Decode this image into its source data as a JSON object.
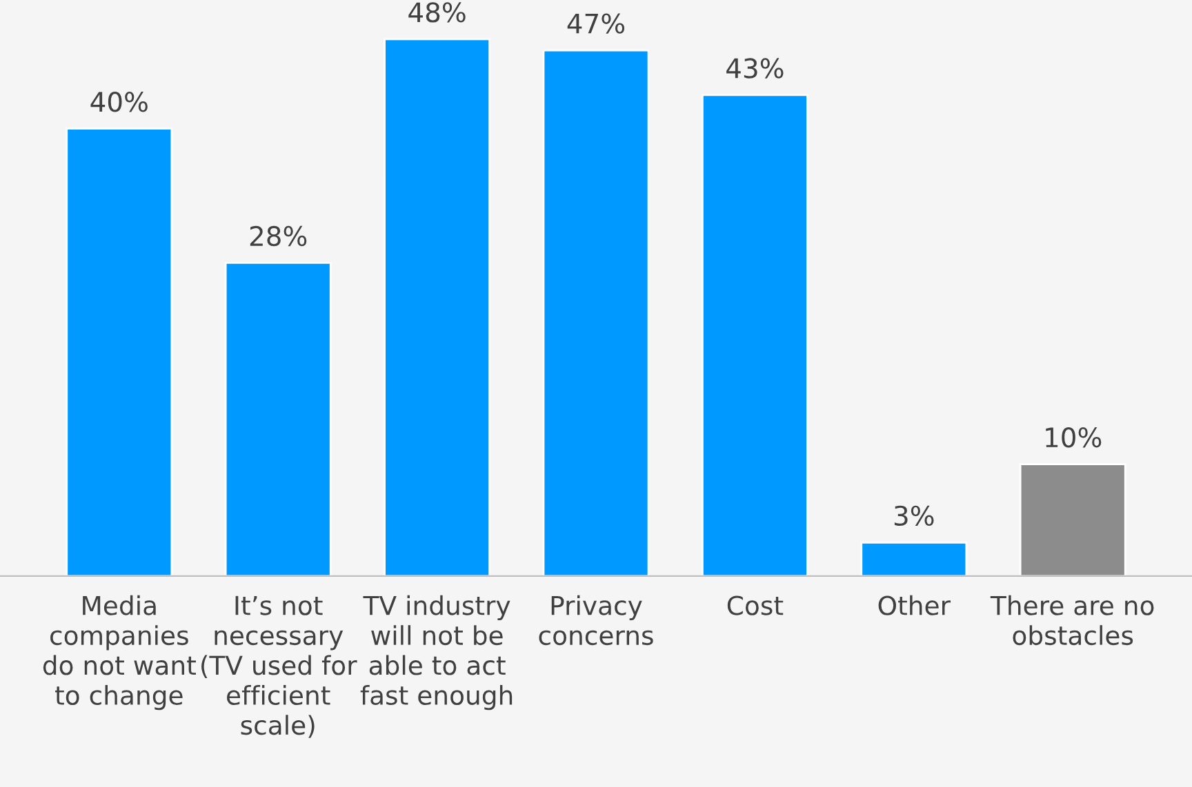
{
  "chart_data": {
    "type": "bar",
    "categories": [
      "Media\ncompanies\ndo not want\nto change",
      "It’s not\nnecessary\n(TV used for\nefficient\nscale)",
      "TV industry\nwill not be\nable to act\nfast enough",
      "Privacy\nconcerns",
      "Cost",
      "Other",
      "There are no\nobstacles"
    ],
    "values": [
      40,
      28,
      48,
      47,
      43,
      3,
      10
    ],
    "colors": [
      "#0099ff",
      "#0099ff",
      "#0099ff",
      "#0099ff",
      "#0099ff",
      "#0099ff",
      "#8c8c8c"
    ],
    "value_labels": [
      "40%",
      "28%",
      "48%",
      "47%",
      "43%",
      "3%",
      "10%"
    ],
    "grid": false,
    "legend": false
  }
}
